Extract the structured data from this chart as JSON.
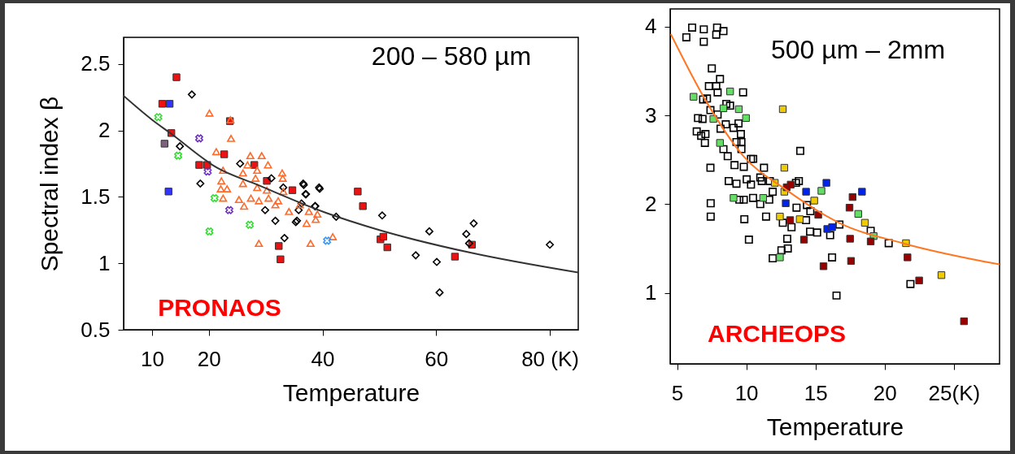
{
  "chart_data": [
    {
      "type": "scatter",
      "xlabel": "Temperature",
      "ylabel": "Spectral index β",
      "annotations": [
        "200 – 580 µm",
        "PRONAOS"
      ],
      "xlim": [
        5,
        85
      ],
      "ylim": [
        0.5,
        2.7
      ],
      "xticks": [
        10,
        20,
        40,
        60,
        {
          "value": 80,
          "label": "80 (K)"
        }
      ],
      "yticks": [
        0.5,
        1,
        1.5,
        2,
        2.5
      ],
      "series": [
        {
          "color": "#ee1111",
          "marker": "square",
          "x": [
            14.3,
            11.8,
            13.4,
            22.7,
            18.3,
            19.7,
            23.7,
            28.0,
            30.2,
            34.7,
            32.3,
            32.6,
            46.2,
            47.1,
            50.2,
            50.7,
            51.4,
            63.3,
            66.3
          ],
          "values": [
            2.4,
            2.2,
            1.98,
            1.82,
            1.74,
            1.74,
            2.07,
            1.74,
            1.62,
            1.55,
            1.13,
            1.03,
            1.54,
            1.43,
            1.18,
            1.2,
            1.12,
            1.05,
            1.14
          ]
        },
        {
          "color": "#000000",
          "marker": "diamond",
          "x": [
            17.0,
            14.9,
            18.5,
            25.5,
            31.0,
            33.1,
            36.7,
            39.5,
            37.1,
            36.3,
            38.7,
            35.8,
            29.9,
            31.7,
            35.5,
            33.3,
            36.6,
            39.4,
            37.0,
            38.7,
            35.3,
            42.4,
            50.5,
            58.8,
            65.3,
            66.6,
            65.8,
            56.4,
            60.1,
            60.6,
            80.0
          ],
          "values": [
            2.27,
            1.88,
            1.6,
            1.75,
            1.64,
            1.57,
            1.59,
            1.56,
            1.52,
            1.45,
            1.43,
            1.4,
            1.4,
            1.32,
            1.32,
            1.19,
            1.6,
            1.57,
            1.52,
            1.43,
            1.31,
            1.35,
            1.36,
            1.24,
            1.22,
            1.3,
            1.15,
            1.06,
            1.01,
            0.78,
            1.14
          ]
        },
        {
          "color": "#ff6a2a",
          "marker": "triangle",
          "x": [
            20.1,
            23.8,
            23.9,
            21.3,
            27.3,
            29.3,
            30.4,
            26.8,
            22.5,
            26.0,
            28.5,
            32.9,
            22.2,
            28.2,
            22.1,
            23.2,
            26.0,
            28.5,
            30.2,
            27.4,
            30.5,
            22.5,
            25.3,
            26.2,
            28.8,
            31.7,
            33.1,
            34.1,
            32.2,
            36.0,
            37.6,
            39.1,
            38.8,
            37.2,
            28.8,
            37.9,
            33.0,
            41.8
          ],
          "values": [
            2.13,
            2.08,
            1.94,
            1.84,
            1.81,
            1.81,
            1.74,
            1.74,
            1.7,
            1.68,
            1.7,
            1.68,
            1.62,
            1.64,
            1.56,
            1.56,
            1.6,
            1.57,
            1.55,
            1.49,
            1.49,
            1.49,
            1.48,
            1.43,
            1.47,
            1.44,
            1.54,
            1.39,
            1.47,
            1.44,
            1.39,
            1.37,
            1.33,
            1.3,
            1.15,
            1.15,
            1.64,
            1.2
          ]
        },
        {
          "color": "#33dd33",
          "marker": "cross",
          "x": [
            11.1,
            14.6,
            21.0,
            20.1,
            27.2
          ],
          "values": [
            2.1,
            1.81,
            1.49,
            1.24,
            1.29
          ]
        },
        {
          "color": "#7030c0",
          "marker": "cross",
          "x": [
            18.3,
            19.8,
            23.6
          ],
          "values": [
            1.94,
            1.69,
            1.4
          ]
        },
        {
          "color": "#3333ff",
          "marker": "square",
          "x": [
            13.1,
            12.9
          ],
          "values": [
            2.2,
            1.54
          ]
        },
        {
          "color": "#806080",
          "marker": "square",
          "x": [
            12.2
          ],
          "values": [
            1.9
          ]
        },
        {
          "color": "#3399ff",
          "marker": "cross",
          "x": [
            40.8
          ],
          "values": [
            1.17
          ]
        },
        {
          "type": "line",
          "color": "#333333",
          "x": [
            5,
            10,
            13.2,
            21.4,
            28.6,
            40.6,
            50,
            66,
            85
          ],
          "values": [
            2.26,
            2.08,
            1.98,
            1.72,
            1.59,
            1.38,
            1.25,
            1.08,
            0.93
          ]
        }
      ]
    },
    {
      "type": "scatter",
      "xlabel": "Temperature",
      "annotations": [
        "500 µm – 2mm",
        "ARCHEOPS"
      ],
      "xlim": [
        4.5,
        28.3
      ],
      "ylim": [
        0.2,
        4.2
      ],
      "xticks": [
        5,
        10,
        15,
        20,
        {
          "value": 25,
          "label": "25(K)"
        }
      ],
      "yticks": [
        1,
        2,
        3,
        4
      ],
      "series": [
        {
          "color": "#000000",
          "marker": "square",
          "x": [
            5.67,
            6.09,
            6.93,
            6.93,
            7.89,
            7.83,
            8.35,
            7.51,
            8.1,
            7.3,
            7.83,
            7.93,
            9.77,
            6.88,
            7.16,
            7.41,
            6.51,
            6.84,
            7.93,
            8.56,
            8.83,
            6.42,
            7.05,
            6.74,
            7.01,
            8.14,
            8.52,
            9.08,
            9.44,
            9.61,
            9.65,
            8.35,
            8.66,
            9.29,
            9.65,
            10.34,
            10.5,
            9.15,
            9.82,
            11.28,
            7.41,
            13.9,
            8.73,
            9.29,
            10.03,
            10.34,
            11.01,
            11.12,
            11.7,
            11.91,
            13.59,
            13.8,
            9.5,
            9.82,
            10.49,
            11.01,
            11.66,
            7.43,
            7.43,
            9.86,
            11.43,
            13.63,
            14.38,
            14.63,
            14.32,
            12.64,
            13.27,
            14.61,
            15.12,
            16.06,
            16.73,
            12.96,
            10.19,
            13.0,
            12.54,
            11.91,
            16.2,
            18.99,
            20.29,
            21.86,
            16.52
          ],
          "values": [
            3.88,
            3.99,
            3.97,
            3.83,
            3.99,
            3.91,
            3.95,
            3.53,
            3.41,
            3.33,
            3.33,
            3.26,
            3.26,
            3.18,
            3.19,
            3.06,
            2.97,
            2.96,
            3.01,
            3.13,
            3.11,
            2.82,
            2.79,
            2.77,
            2.69,
            2.85,
            2.9,
            2.86,
            2.91,
            2.79,
            2.7,
            2.62,
            2.54,
            2.7,
            2.62,
            2.51,
            2.51,
            2.44,
            2.42,
            2.41,
            2.41,
            2.6,
            2.26,
            2.23,
            2.28,
            2.22,
            2.3,
            2.26,
            2.26,
            2.14,
            2.24,
            2.26,
            2.05,
            2.05,
            2.07,
            2.0,
            2.05,
            2.01,
            1.86,
            1.83,
            1.86,
            1.96,
            1.99,
            1.92,
            1.82,
            1.79,
            1.74,
            1.69,
            1.68,
            1.65,
            1.77,
            1.61,
            1.6,
            1.5,
            1.48,
            1.39,
            1.4,
            1.7,
            1.56,
            1.1,
            0.97
          ]
        },
        {
          "color": "#66dd66",
          "marker": "square",
          "x": [
            6.19,
            8.83,
            8.35,
            9.46,
            9.98,
            7.62,
            8.1,
            9.08,
            11.22,
            15.43,
            18.09,
            19.2,
            12.43
          ],
          "values": [
            3.21,
            3.27,
            3.08,
            3.07,
            2.97,
            2.96,
            2.69,
            2.07,
            2.07,
            2.15,
            1.89,
            1.64,
            1.4
          ]
        },
        {
          "color": "#eecc00",
          "marker": "square",
          "x": [
            12.64,
            12.75,
            12.06,
            12.75,
            14.91,
            12.43,
            13.86,
            18.57,
            21.54,
            24.1
          ],
          "values": [
            3.07,
            2.41,
            2.24,
            2.14,
            2.04,
            1.86,
            1.83,
            1.79,
            1.56,
            1.2
          ]
        },
        {
          "color": "#0022ee",
          "marker": "square",
          "x": [
            12.85,
            14.32,
            15.79,
            18.36,
            15.85,
            16.2
          ],
          "values": [
            2.01,
            2.14,
            2.24,
            2.14,
            1.72,
            1.74
          ]
        },
        {
          "color": "#990000",
          "marker": "square",
          "x": [
            12.92,
            13.21,
            13.17,
            15.2,
            14.17,
            15.58,
            17.46,
            17.68,
            17.5,
            17.57,
            18.99,
            21.65,
            22.49,
            25.73
          ],
          "values": [
            2.19,
            2.22,
            1.82,
            1.88,
            1.6,
            1.3,
            1.96,
            2.08,
            1.61,
            1.36,
            1.58,
            1.4,
            1.14,
            0.68
          ]
        },
        {
          "type": "line",
          "color": "#ff7722",
          "x": [
            4.57,
            7.1,
            9.8,
            12.9,
            16.7,
            21.3,
            28.3
          ],
          "values": [
            3.91,
            3.16,
            2.54,
            2.16,
            1.79,
            1.56,
            1.32
          ]
        }
      ]
    }
  ]
}
